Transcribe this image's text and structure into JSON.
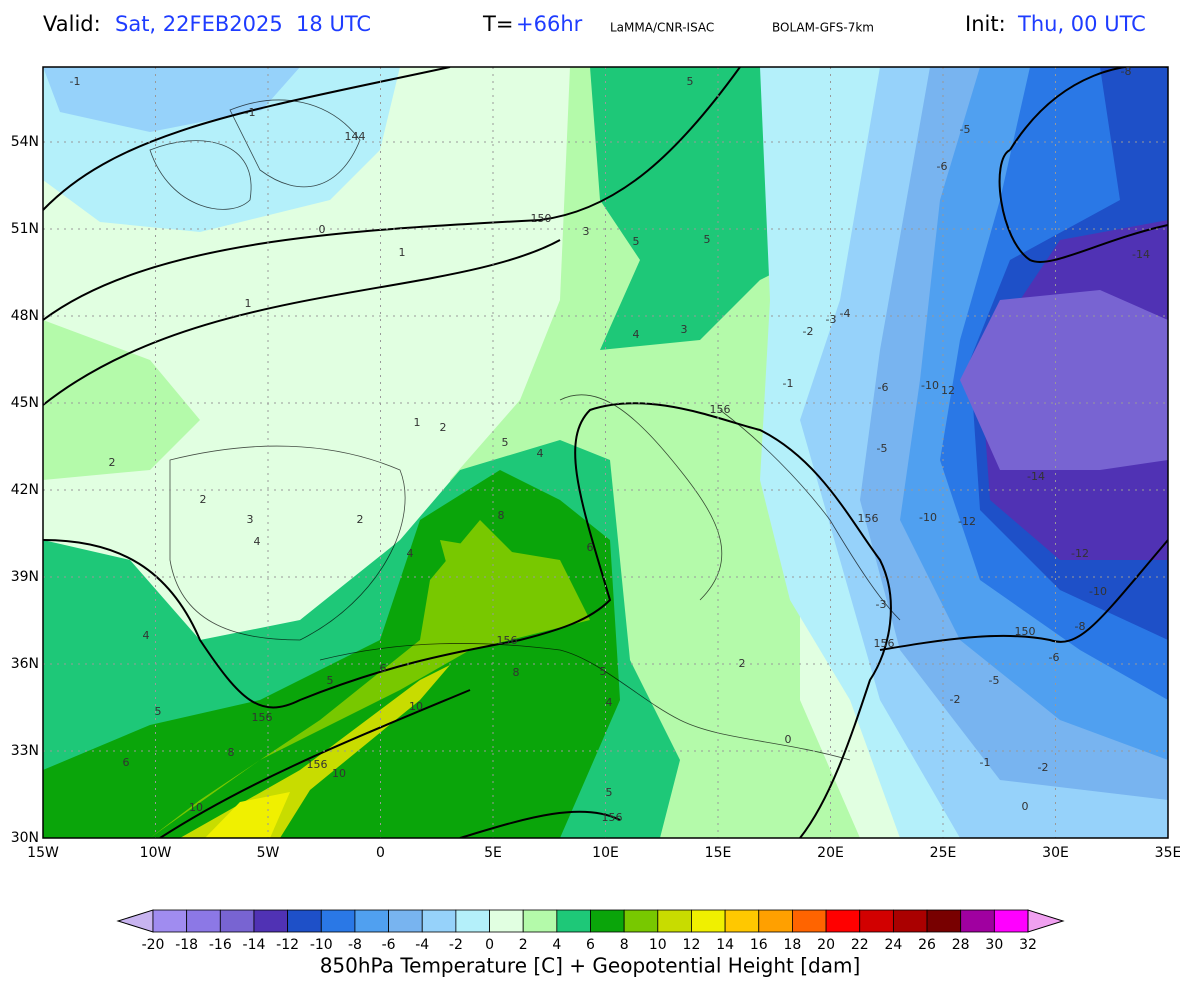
{
  "header": {
    "valid_label": "Valid:",
    "valid_time": "Sat, 22FEB2025  18 UTC",
    "lead_label": "T=",
    "lead_value": "+66hr",
    "source": "LaMMA/CNR-ISAC",
    "model": "BOLAM-GFS-7km",
    "init_label": "Init:",
    "init_time": "Thu, 00 UTC"
  },
  "map": {
    "lon_ticks": [
      "15W",
      "10W",
      "5W",
      "0",
      "5E",
      "10E",
      "15E",
      "20E",
      "25E",
      "30E",
      "35E"
    ],
    "lat_ticks": [
      "30N",
      "33N",
      "36N",
      "39N",
      "42N",
      "45N",
      "48N",
      "51N",
      "54N"
    ],
    "contour_labels": [
      "-1",
      "-1",
      "144",
      "0",
      "1",
      "1",
      "150",
      "3",
      "5",
      "5",
      "5",
      "4",
      "3",
      "-8",
      "-5",
      "-6",
      "-14",
      "-4",
      "-3",
      "-2",
      "-1",
      "156",
      "-6",
      "-10",
      "12",
      "-5",
      "-14",
      "-10",
      "-12",
      "156",
      "-12",
      "-10",
      "-8",
      "150",
      "-6",
      "-5",
      "-2",
      "-1",
      "-2",
      "0",
      "2",
      "2",
      "3",
      "4",
      "2",
      "1",
      "2",
      "5",
      "4",
      "8",
      "6",
      "4",
      "156",
      "6",
      "5",
      "8",
      "5",
      "4",
      "2",
      "156",
      "10",
      "8",
      "6",
      "5",
      "4",
      "156",
      "10",
      "10",
      "5",
      "156",
      "0",
      "-3",
      "156"
    ]
  },
  "colorbar": {
    "title": "850hPa Temperature [C] + Geopotential Height [dam]",
    "ticks": [
      -20,
      -18,
      -16,
      -14,
      -12,
      -10,
      -8,
      -6,
      -4,
      -2,
      0,
      2,
      4,
      6,
      8,
      10,
      12,
      14,
      16,
      18,
      20,
      22,
      24,
      26,
      28,
      30,
      32
    ],
    "colors": [
      "#c8b4f0",
      "#a08cf0",
      "#8c78e6",
      "#7864d2",
      "#5032b4",
      "#1e50c8",
      "#2a78e6",
      "#50a0f0",
      "#78b4f0",
      "#96d2fa",
      "#b4f0fa",
      "#e1ffe1",
      "#b4faaa",
      "#1ec878",
      "#0aa50a",
      "#78c800",
      "#c8dc00",
      "#f0f000",
      "#ffc800",
      "#ffa000",
      "#ff6400",
      "#ff0000",
      "#d20000",
      "#aa0000",
      "#780000",
      "#a000a0",
      "#ff00ff",
      "#f0a0f0"
    ]
  }
}
